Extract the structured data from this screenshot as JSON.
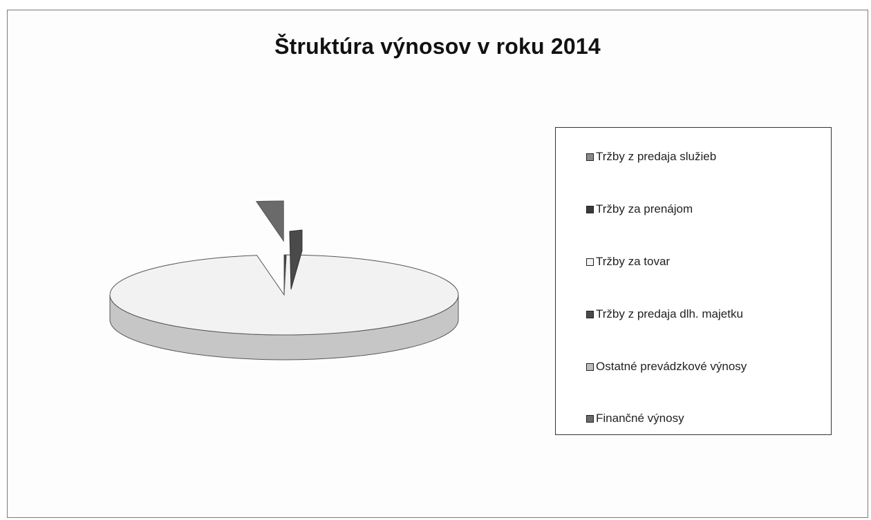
{
  "chart_data": {
    "type": "pie",
    "title": "Štruktúra výnosov v roku 2014",
    "categories": [
      "Tržby z predaja služieb",
      "Tržby za prenájom",
      "Tržby za tovar",
      "Tržby z predaja dlh. majetku",
      "Ostatné prevádzkové výnosy",
      "Finančné výnosy"
    ],
    "values": [
      0,
      0.2,
      97.3,
      0,
      0,
      2.5
    ],
    "legend_position": "right",
    "series_colors": [
      "#8a8a8a",
      "#3a3a3a",
      "#f2f2f2",
      "#4a4a4a",
      "#bdbdbd",
      "#6a6a6a"
    ],
    "exploded": [
      false,
      false,
      false,
      false,
      false,
      true
    ]
  }
}
